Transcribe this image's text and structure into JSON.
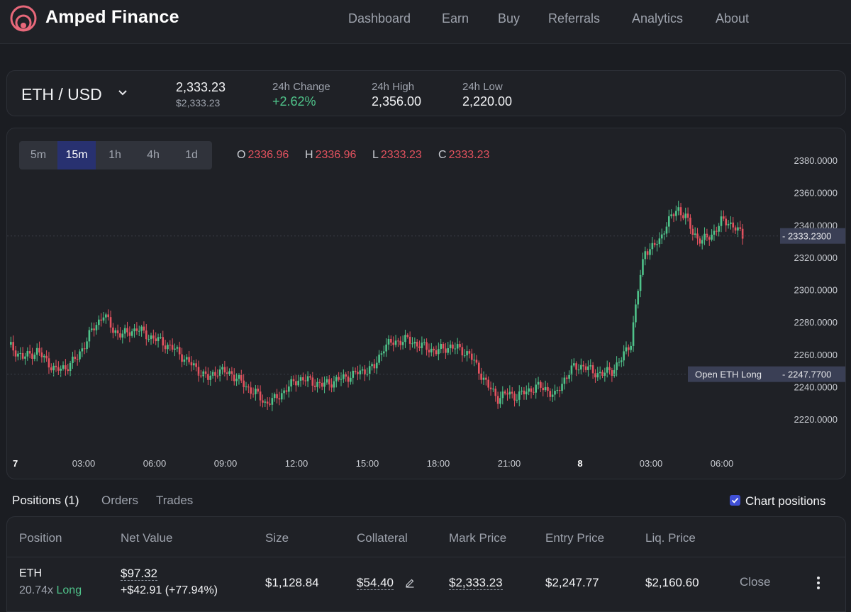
{
  "header": {
    "brand": "Amped Finance",
    "nav": [
      "Dashboard",
      "Earn",
      "Buy",
      "Referrals",
      "Analytics",
      "About"
    ]
  },
  "ticker": {
    "pair": "ETH / USD",
    "price": "2,333.23",
    "price_usd": "$2,333.23",
    "change_label": "24h Change",
    "change_value": "+2.62%",
    "high_label": "24h High",
    "high_value": "2,356.00",
    "low_label": "24h Low",
    "low_value": "2,220.00"
  },
  "chart": {
    "timeframes": [
      "5m",
      "15m",
      "1h",
      "4h",
      "1d"
    ],
    "active_timeframe": "15m",
    "ohlc": {
      "o_label": "O",
      "o": "2336.96",
      "h_label": "H",
      "h": "2336.96",
      "l_label": "L",
      "l": "2333.23",
      "c_label": "C",
      "c": "2333.23"
    },
    "current_price_label": "2333.2300",
    "position_label": "Open ETH Long",
    "position_price_label": "2247.7700"
  },
  "chart_data": {
    "type": "candlestick",
    "y_ticks": [
      "2380.0000",
      "2360.0000",
      "2340.0000",
      "2320.0000",
      "2300.0000",
      "2280.0000",
      "2260.0000",
      "2240.0000",
      "2220.0000"
    ],
    "x_ticks": [
      "7",
      "03:00",
      "06:00",
      "09:00",
      "12:00",
      "15:00",
      "18:00",
      "21:00",
      "8",
      "03:00",
      "06:00"
    ],
    "ylim": [
      2210,
      2385
    ],
    "current_price": 2333.23,
    "entry_price": 2247.77,
    "colors": {
      "up": "#4fc38a",
      "down": "#e4525f",
      "grid_line": "#3a3e46"
    },
    "anchors": [
      [
        0,
        2266
      ],
      [
        6,
        2258
      ],
      [
        12,
        2262
      ],
      [
        16,
        2256
      ],
      [
        20,
        2250
      ],
      [
        24,
        2252
      ],
      [
        29,
        2258
      ],
      [
        34,
        2272
      ],
      [
        40,
        2285
      ],
      [
        44,
        2275
      ],
      [
        48,
        2272
      ],
      [
        54,
        2276
      ],
      [
        58,
        2272
      ],
      [
        64,
        2268
      ],
      [
        70,
        2263
      ],
      [
        76,
        2255
      ],
      [
        84,
        2245
      ],
      [
        88,
        2250
      ],
      [
        94,
        2248
      ],
      [
        100,
        2240
      ],
      [
        104,
        2236
      ],
      [
        108,
        2230
      ],
      [
        112,
        2232
      ],
      [
        118,
        2240
      ],
      [
        122,
        2245
      ],
      [
        126,
        2244
      ],
      [
        132,
        2241
      ],
      [
        138,
        2244
      ],
      [
        144,
        2247
      ],
      [
        150,
        2250
      ],
      [
        154,
        2252
      ],
      [
        158,
        2265
      ],
      [
        163,
        2268
      ],
      [
        168,
        2269
      ],
      [
        174,
        2265
      ],
      [
        180,
        2262
      ],
      [
        186,
        2265
      ],
      [
        190,
        2263
      ],
      [
        194,
        2260
      ],
      [
        198,
        2250
      ],
      [
        202,
        2240
      ],
      [
        206,
        2233
      ],
      [
        210,
        2236
      ],
      [
        214,
        2234
      ],
      [
        218,
        2237
      ],
      [
        222,
        2240
      ],
      [
        226,
        2239
      ],
      [
        230,
        2234
      ],
      [
        234,
        2245
      ],
      [
        238,
        2252
      ],
      [
        242,
        2253
      ],
      [
        246,
        2249
      ],
      [
        250,
        2248
      ],
      [
        254,
        2250
      ],
      [
        258,
        2257
      ],
      [
        262,
        2268
      ],
      [
        265,
        2300
      ],
      [
        268,
        2325
      ],
      [
        270,
        2325
      ],
      [
        274,
        2330
      ],
      [
        276,
        2338
      ],
      [
        279,
        2345
      ],
      [
        282,
        2350
      ],
      [
        285,
        2345
      ],
      [
        288,
        2335
      ],
      [
        292,
        2330
      ],
      [
        296,
        2334
      ],
      [
        300,
        2342
      ],
      [
        303,
        2342
      ],
      [
        306,
        2338
      ],
      [
        309,
        2333
      ]
    ]
  },
  "tabs": {
    "positions": "Positions (1)",
    "orders": "Orders",
    "trades": "Trades",
    "chart_positions": "Chart positions"
  },
  "table": {
    "headers": [
      "Position",
      "Net Value",
      "Size",
      "Collateral",
      "Mark Price",
      "Entry Price",
      "Liq. Price"
    ],
    "row": {
      "asset": "ETH",
      "leverage": "20.74x",
      "side": "Long",
      "net_value": "$97.32",
      "pnl": "+$42.91 (+77.94%)",
      "size": "$1,128.84",
      "collateral": "$54.40",
      "mark_price": "$2,333.23",
      "entry_price": "$2,247.77",
      "liq_price": "$2,160.60",
      "close": "Close"
    }
  }
}
